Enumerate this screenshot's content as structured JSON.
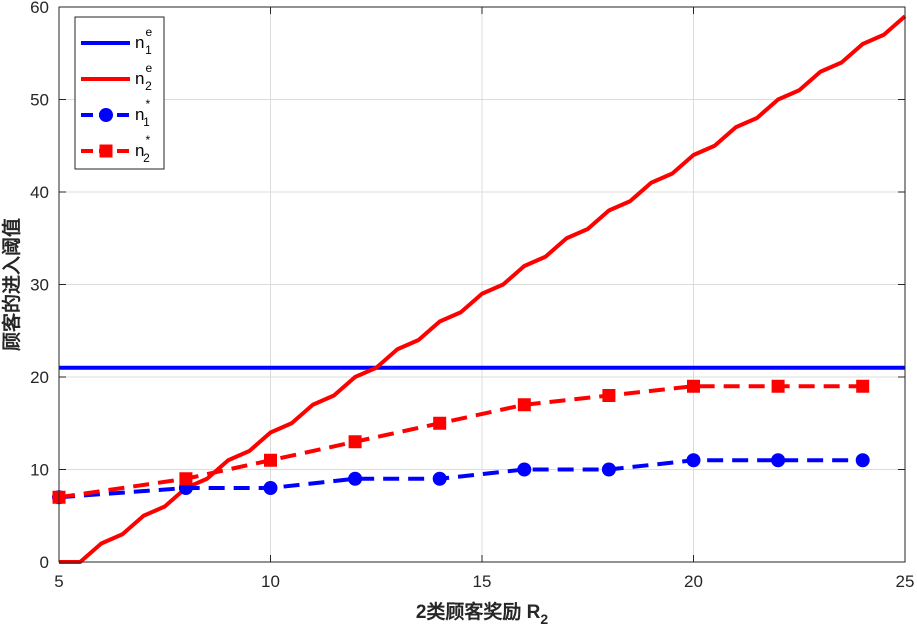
{
  "chart_data": {
    "type": "line",
    "xlabel": "2类顾客奖励 R",
    "xlabel_sub": "2",
    "ylabel": "顾客的进入阈值",
    "xlim": [
      5,
      25
    ],
    "ylim": [
      0,
      60
    ],
    "xticks": [
      5,
      10,
      15,
      20,
      25
    ],
    "yticks": [
      0,
      10,
      20,
      30,
      40,
      50,
      60
    ],
    "grid": true,
    "legend_position": "top-left",
    "series": [
      {
        "name": "n",
        "sup": "e",
        "sub": "1",
        "color": "#0000ff",
        "style": "solid",
        "marker": "none",
        "x": [
          5,
          25
        ],
        "y": [
          21,
          21
        ]
      },
      {
        "name": "n",
        "sup": "e",
        "sub": "2",
        "color": "#ff0000",
        "style": "solid",
        "marker": "none",
        "x": [
          5,
          5.5,
          6,
          6.5,
          7,
          7.5,
          8,
          8.5,
          9,
          9.5,
          10,
          10.5,
          11,
          11.5,
          12,
          12.5,
          13,
          13.5,
          14,
          14.5,
          15,
          15.5,
          16,
          16.5,
          17,
          17.5,
          18,
          18.5,
          19,
          19.5,
          20,
          20.5,
          21,
          21.5,
          22,
          22.5,
          23,
          23.5,
          24,
          24.5,
          25
        ],
        "y": [
          0,
          0,
          2,
          3,
          5,
          6,
          8,
          9,
          11,
          12,
          14,
          15,
          17,
          18,
          20,
          21,
          23,
          24,
          26,
          27,
          29,
          30,
          32,
          33,
          35,
          36,
          38,
          39,
          41,
          42,
          44,
          45,
          47,
          48,
          50,
          51,
          53,
          54,
          56,
          57,
          59
        ]
      },
      {
        "name": "n",
        "sup": "*",
        "sub": "1",
        "color": "#0000ff",
        "style": "dashed",
        "marker": "circle",
        "x": [
          5,
          8,
          10,
          12,
          14,
          16,
          18,
          20,
          22,
          24
        ],
        "y": [
          7,
          8,
          8,
          9,
          9,
          10,
          10,
          11,
          11,
          11
        ]
      },
      {
        "name": "n",
        "sup": "*",
        "sub": "2",
        "color": "#ff0000",
        "style": "dashed",
        "marker": "square",
        "x": [
          5,
          8,
          10,
          12,
          14,
          16,
          18,
          20,
          22,
          24
        ],
        "y": [
          7,
          9,
          11,
          13,
          15,
          17,
          18,
          19,
          19,
          19
        ]
      }
    ]
  }
}
